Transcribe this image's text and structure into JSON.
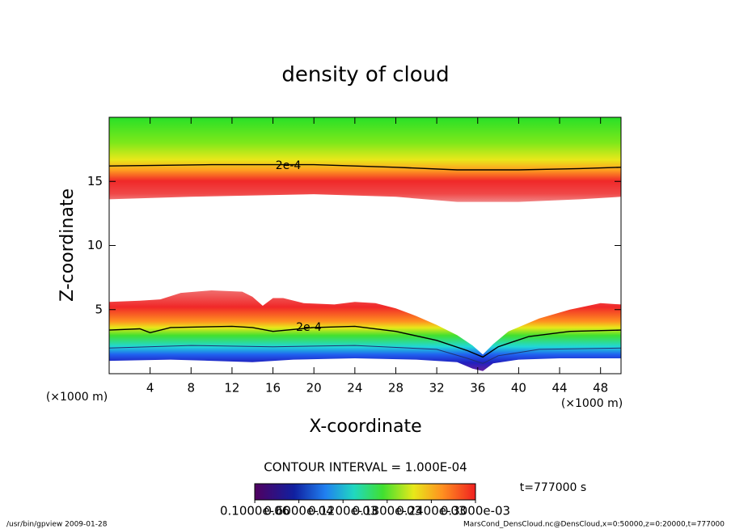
{
  "chart_data": {
    "type": "contour",
    "title": "density of cloud",
    "x_label": "X-coordinate",
    "y_label": "Z-coordinate",
    "x_unit": "(×1000 m)",
    "xlim": [
      0,
      50
    ],
    "ylim": [
      0,
      20
    ],
    "xticks": [
      4,
      8,
      12,
      16,
      20,
      24,
      28,
      32,
      36,
      40,
      44,
      48
    ],
    "yticks": [
      5,
      10,
      15
    ],
    "contour_levels": [
      {
        "value": 0.0002,
        "label": "2e-4"
      }
    ],
    "contour_interval": "CONTOUR INTERVAL = 1.000E-04",
    "time_label": "t=777000 s",
    "colorbar_ticks": [
      {
        "value": 1e-07,
        "label": "0.1000e-06"
      },
      {
        "value": 6e-05,
        "label": "0.6000e-04"
      },
      {
        "value": 0.00012,
        "label": "0.1200e-03"
      },
      {
        "value": 0.00018,
        "label": "0.1800e-03"
      },
      {
        "value": 0.00024,
        "label": "0.2400e-03"
      },
      {
        "value": 0.0003,
        "label": "0.3000e-03"
      }
    ],
    "colorbar_lim": [
      0,
      0.0003
    ],
    "footer_left": "/usr/bin/gpview  2009-01-28",
    "footer_right": "MarsCond_DensCloud.nc@DensCloud,x=0:50000,z=0:20000,t=777000"
  }
}
